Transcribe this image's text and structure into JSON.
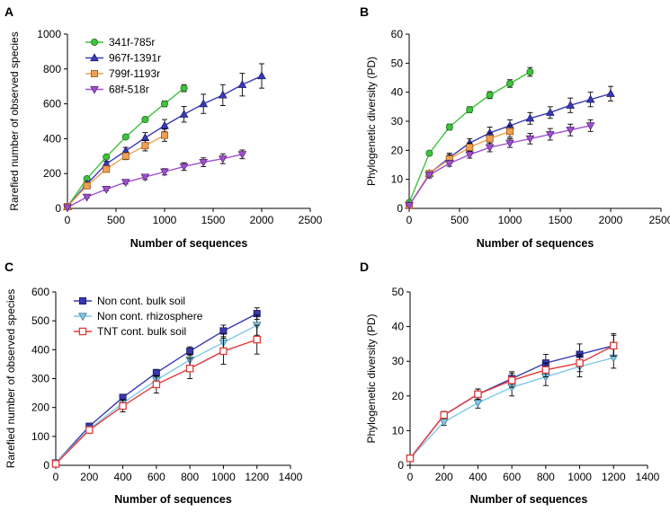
{
  "colors": {
    "green": "#3cc43c",
    "blue": "#3a3ab8",
    "orange": "#f0a050",
    "purple": "#a050d0",
    "navy": "#3838b0",
    "lightblue": "#80c8e8",
    "red": "#e03c3c",
    "errorbar": "#000000"
  },
  "chart_data": [
    {
      "panel_label": "A",
      "type": "line",
      "xlabel": "Number of sequences",
      "ylabel": "Rarefied number of observed species",
      "xlim": [
        0,
        2500
      ],
      "ylim": [
        0,
        1000
      ],
      "xticks": [
        0,
        500,
        1000,
        1500,
        2000,
        2500
      ],
      "yticks": [
        0,
        200,
        400,
        600,
        800,
        1000
      ],
      "legend_position": "top-left",
      "series": [
        {
          "name": "341f-785r",
          "color": "green",
          "marker": "circle",
          "x": [
            0,
            200,
            400,
            600,
            800,
            1000,
            1200
          ],
          "y": [
            10,
            170,
            295,
            410,
            510,
            600,
            690
          ],
          "err": [
            0,
            8,
            10,
            12,
            14,
            16,
            20
          ]
        },
        {
          "name": "967f-1391r",
          "color": "blue",
          "marker": "triangle",
          "x": [
            0,
            200,
            400,
            600,
            800,
            1000,
            1200,
            1400,
            1600,
            1800,
            2000
          ],
          "y": [
            10,
            140,
            255,
            330,
            405,
            475,
            540,
            600,
            650,
            710,
            760
          ],
          "err": [
            0,
            10,
            15,
            20,
            30,
            35,
            45,
            55,
            60,
            65,
            70
          ]
        },
        {
          "name": "799f-1193r",
          "color": "orange",
          "marker": "square",
          "x": [
            0,
            200,
            400,
            600,
            800,
            1000
          ],
          "y": [
            10,
            130,
            225,
            300,
            360,
            420
          ],
          "err": [
            0,
            10,
            15,
            20,
            30,
            35
          ]
        },
        {
          "name": "68f-518r",
          "color": "purple",
          "marker": "triangle-down",
          "x": [
            0,
            200,
            400,
            600,
            800,
            1000,
            1200,
            1400,
            1600,
            1800
          ],
          "y": [
            5,
            65,
            110,
            150,
            180,
            210,
            240,
            265,
            285,
            310
          ],
          "err": [
            0,
            5,
            8,
            10,
            15,
            18,
            22,
            25,
            28,
            25
          ]
        }
      ]
    },
    {
      "panel_label": "B",
      "type": "line",
      "xlabel": "Number of sequences",
      "ylabel": "Phylogenetic diversity (PD)",
      "xlim": [
        0,
        2500
      ],
      "ylim": [
        0,
        60
      ],
      "xticks": [
        0,
        500,
        1000,
        1500,
        2000,
        2500
      ],
      "yticks": [
        0,
        10,
        20,
        30,
        40,
        50,
        60
      ],
      "series": [
        {
          "name": "341f-785r",
          "color": "green",
          "marker": "circle",
          "x": [
            0,
            200,
            400,
            600,
            800,
            1000,
            1200
          ],
          "y": [
            2,
            19,
            28,
            34,
            39,
            43,
            47
          ],
          "err": [
            0,
            0.8,
            1,
            1,
            1.2,
            1.3,
            1.5
          ]
        },
        {
          "name": "967f-1391r",
          "color": "blue",
          "marker": "triangle",
          "x": [
            0,
            200,
            400,
            600,
            800,
            1000,
            1200,
            1400,
            1600,
            1800,
            2000
          ],
          "y": [
            1,
            12,
            17.5,
            22.5,
            26,
            28.5,
            31,
            33,
            35.5,
            37.5,
            39.5
          ],
          "err": [
            0,
            1,
            1.5,
            1.5,
            2,
            2,
            2,
            2,
            2.5,
            2.5,
            2.5
          ]
        },
        {
          "name": "799f-1193r",
          "color": "orange",
          "marker": "square",
          "x": [
            0,
            200,
            400,
            600,
            800,
            1000
          ],
          "y": [
            1,
            12,
            17,
            21,
            24,
            26.5
          ],
          "err": [
            0,
            1,
            1.5,
            1.5,
            2,
            2
          ]
        },
        {
          "name": "68f-518r",
          "color": "purple",
          "marker": "triangle-down",
          "x": [
            0,
            200,
            400,
            600,
            800,
            1000,
            1200,
            1400,
            1600,
            1800
          ],
          "y": [
            1,
            11.5,
            15.5,
            18.5,
            21,
            22.5,
            24,
            25.5,
            27,
            28.5
          ],
          "err": [
            0,
            1,
            1,
            1.2,
            1.5,
            1.5,
            1.8,
            2,
            2,
            2
          ]
        }
      ]
    },
    {
      "panel_label": "C",
      "type": "line",
      "xlabel": "Number of sequences",
      "ylabel": "Rarefied number of observed species",
      "xlim": [
        0,
        1400
      ],
      "ylim": [
        0,
        600
      ],
      "xticks": [
        0,
        200,
        400,
        600,
        800,
        1000,
        1200,
        1400
      ],
      "yticks": [
        0,
        100,
        200,
        300,
        400,
        500,
        600
      ],
      "legend_position": "top-left",
      "series": [
        {
          "name": "Non cont. bulk soil",
          "color": "navy",
          "marker": "square",
          "x": [
            0,
            200,
            400,
            600,
            800,
            1000,
            1200
          ],
          "y": [
            8,
            135,
            235,
            320,
            395,
            465,
            525
          ],
          "err": [
            0,
            5,
            10,
            12,
            15,
            20,
            20
          ]
        },
        {
          "name": "Non cont. rhizosphere",
          "color": "lightblue",
          "marker": "triangle-down",
          "x": [
            0,
            200,
            400,
            600,
            800,
            1000,
            1200
          ],
          "y": [
            8,
            125,
            215,
            295,
            365,
            425,
            485
          ],
          "err": [
            0,
            5,
            12,
            15,
            20,
            30,
            35
          ]
        },
        {
          "name": "TNT cont. bulk soil",
          "color": "red",
          "marker": "square-open",
          "x": [
            0,
            200,
            400,
            600,
            800,
            1000,
            1200
          ],
          "y": [
            5,
            122,
            205,
            280,
            335,
            395,
            435
          ],
          "err": [
            0,
            5,
            20,
            30,
            35,
            45,
            50
          ]
        }
      ]
    },
    {
      "panel_label": "D",
      "type": "line",
      "xlabel": "Number of sequences",
      "ylabel": "Phylogenetic diversity (PD)",
      "xlim": [
        0,
        1400
      ],
      "ylim": [
        0,
        50
      ],
      "xticks": [
        0,
        200,
        400,
        600,
        800,
        1000,
        1200,
        1400
      ],
      "yticks": [
        0,
        10,
        20,
        30,
        40,
        50
      ],
      "series": [
        {
          "name": "Non cont. bulk soil",
          "color": "navy",
          "marker": "square",
          "x": [
            0,
            200,
            400,
            600,
            800,
            1000,
            1200
          ],
          "y": [
            2,
            14.5,
            20.5,
            25,
            29.5,
            32,
            34.5
          ],
          "err": [
            0,
            1,
            1.5,
            2,
            2.5,
            3,
            3.5
          ]
        },
        {
          "name": "Non cont. rhizosphere",
          "color": "lightblue",
          "marker": "triangle-down",
          "x": [
            0,
            200,
            400,
            600,
            800,
            1000,
            1200
          ],
          "y": [
            2,
            12.5,
            18,
            22.5,
            25.5,
            28.5,
            31
          ],
          "err": [
            0,
            1,
            1.5,
            2.5,
            2.5,
            3,
            3
          ]
        },
        {
          "name": "TNT cont. bulk soil",
          "color": "red",
          "marker": "square-open",
          "x": [
            0,
            200,
            400,
            600,
            800,
            1000,
            1200
          ],
          "y": [
            2,
            14.5,
            20.5,
            24.5,
            27.5,
            29.5,
            34.5
          ],
          "err": [
            0,
            1,
            1.5,
            2,
            2,
            2.5,
            3
          ]
        }
      ]
    }
  ]
}
